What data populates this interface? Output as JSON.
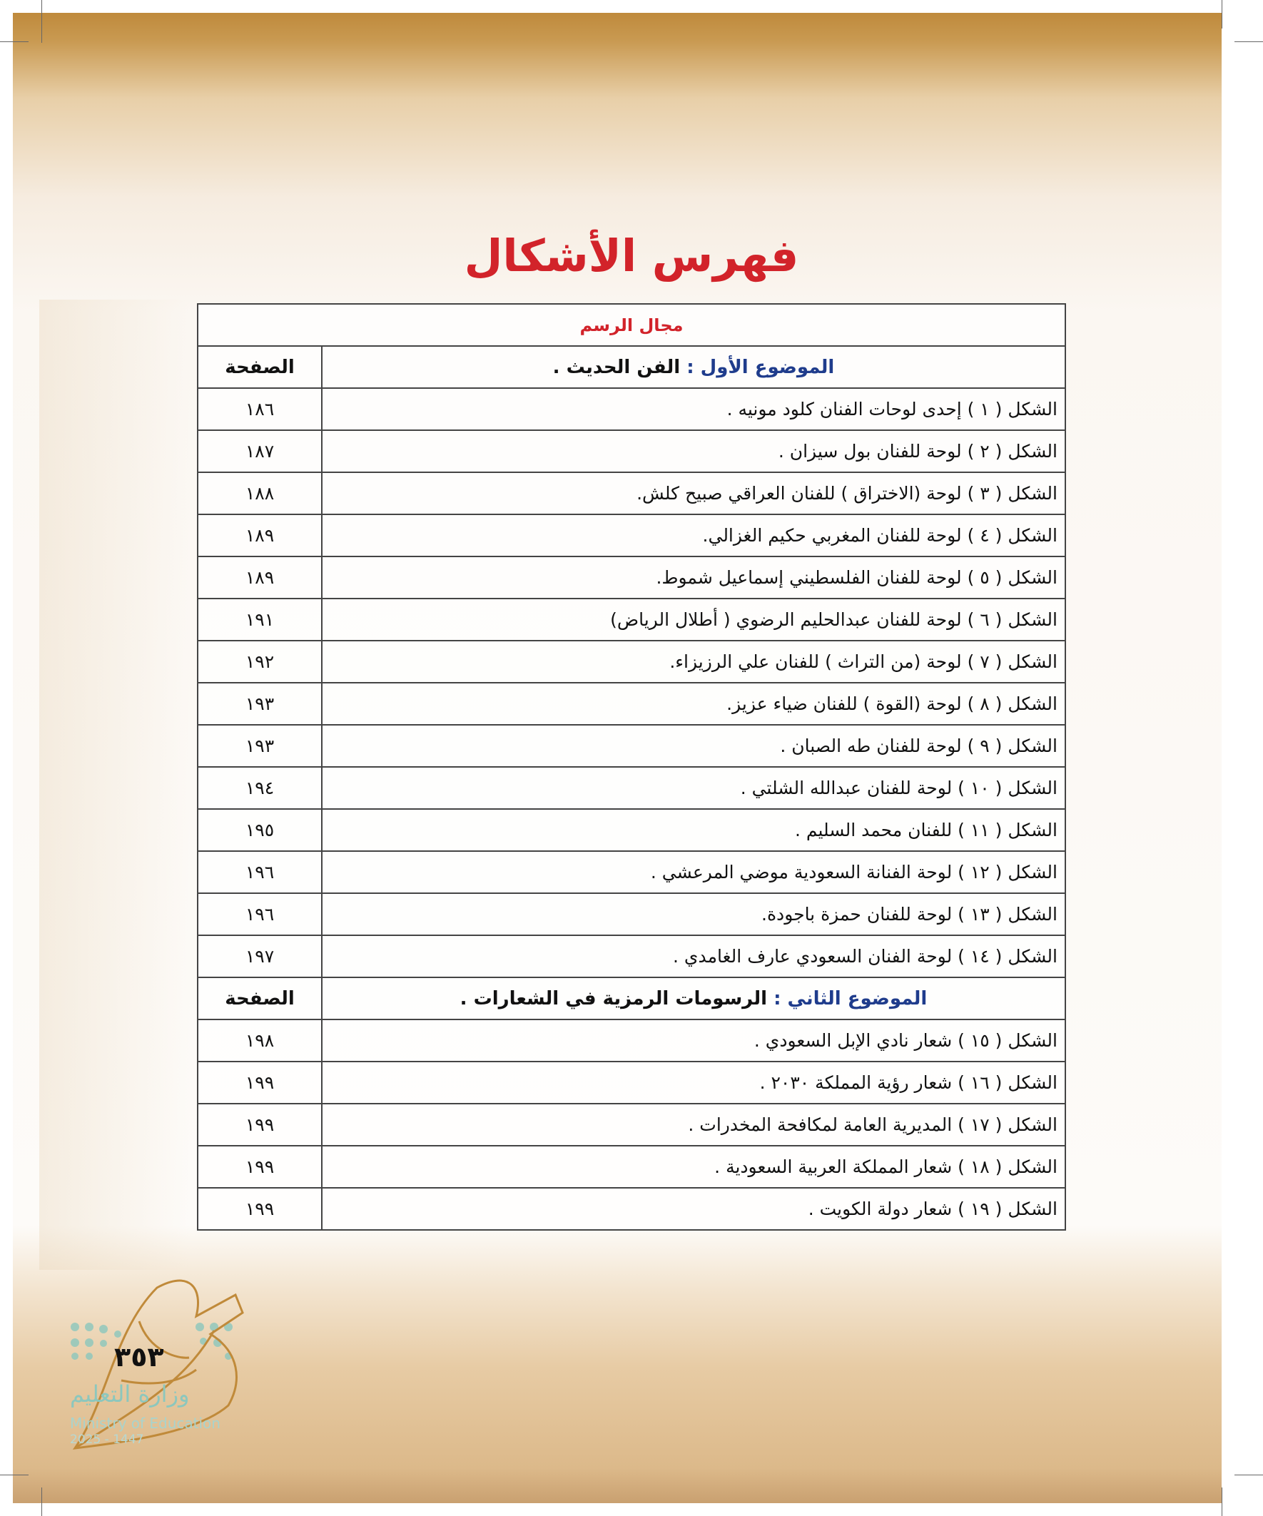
{
  "title": "فهرس الأشكال",
  "section": "مجال الرسم",
  "topics": [
    {
      "label": "الموضوع الأول :",
      "name": "الفن الحديث .",
      "page_header": "الصفحة",
      "rows": [
        {
          "text": "الشكل ( ١ ) إحدى لوحات الفنان كلود مونيه .",
          "page": "١٨٦"
        },
        {
          "text": "الشكل ( ٢ ) لوحة للفنان بول سيزان .",
          "page": "١٨٧"
        },
        {
          "text": "الشكل ( ٣ ) لوحة (الاختراق ) للفنان العراقي صبيح كلش.",
          "page": "١٨٨"
        },
        {
          "text": "الشكل ( ٤ ) لوحة للفنان المغربي حكيم الغزالي.",
          "page": "١٨٩"
        },
        {
          "text": "الشكل ( ٥ ) لوحة للفنان الفلسطيني إسماعيل شموط.",
          "page": "١٨٩"
        },
        {
          "text": "الشكل ( ٦ ) لوحة للفنان عبدالحليم الرضوي ( أطلال الرياض)",
          "page": "١٩١"
        },
        {
          "text": "الشكل ( ٧ ) لوحة (من التراث ) للفنان علي الرزيزاء.",
          "page": "١٩٢"
        },
        {
          "text": "الشكل ( ٨ ) لوحة (القوة ) للفنان ضياء عزيز.",
          "page": "١٩٣"
        },
        {
          "text": "الشكل ( ٩ ) لوحة للفنان طه الصبان .",
          "page": "١٩٣"
        },
        {
          "text": "الشكل ( ١٠ ) لوحة للفنان عبدالله الشلتي .",
          "page": "١٩٤"
        },
        {
          "text": "الشكل ( ١١ ) للفنان محمد السليم .",
          "page": "١٩٥"
        },
        {
          "text": "الشكل ( ١٢ ) لوحة الفنانة السعودية موضي المرعشي .",
          "page": "١٩٦"
        },
        {
          "text": "الشكل ( ١٣ ) لوحة للفنان حمزة باجودة.",
          "page": "١٩٦"
        },
        {
          "text": "الشكل ( ١٤ ) لوحة الفنان السعودي عارف الغامدي .",
          "page": "١٩٧"
        }
      ]
    },
    {
      "label": "الموضوع الثاني :",
      "name": "الرسومات الرمزية في الشعارات .",
      "page_header": "الصفحة",
      "rows": [
        {
          "text": "الشكل ( ١٥ ) شعار نادي الإبل السعودي .",
          "page": "١٩٨"
        },
        {
          "text": "الشكل ( ١٦ ) شعار رؤية المملكة ٢٠٣٠ .",
          "page": "١٩٩"
        },
        {
          "text": "الشكل ( ١٧ ) المديرية العامة لمكافحة المخدرات .",
          "page": "١٩٩"
        },
        {
          "text": "الشكل ( ١٨ ) شعار المملكة العربية السعودية .",
          "page": "١٩٩"
        },
        {
          "text": "الشكل ( ١٩ ) شعار دولة الكويت .",
          "page": "١٩٩"
        }
      ]
    }
  ],
  "footer": {
    "page_number": "٣٥٣",
    "ministry_ar": "وزارة التعليم",
    "ministry_en": "Ministry of Education",
    "year": "2025 - 1447"
  },
  "colors": {
    "title": "#d2232a",
    "topic_label": "#1f3c8c",
    "band": "#bf8a3c",
    "logo": "#8cc7bd"
  }
}
